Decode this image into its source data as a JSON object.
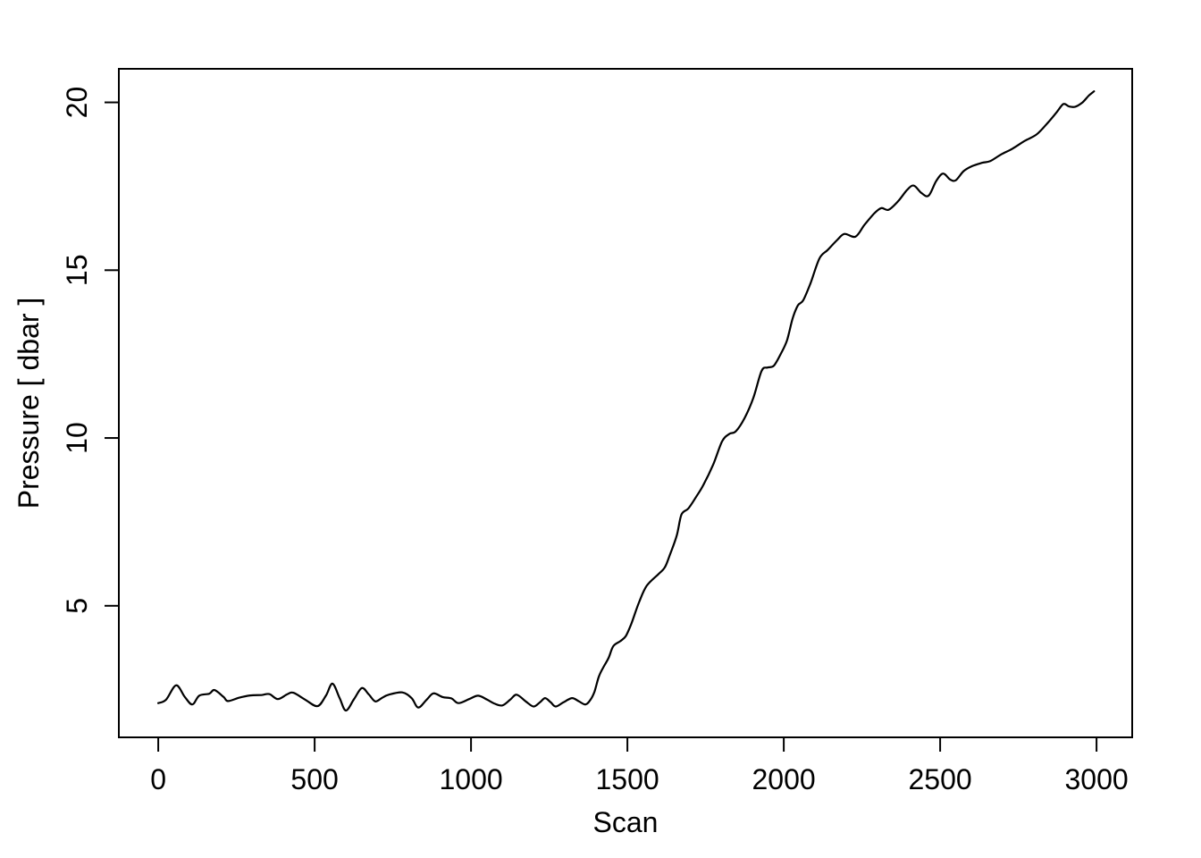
{
  "figure": {
    "background": "#ffffff",
    "axis_color": "#000000"
  },
  "chart_data": {
    "type": "line",
    "title": "",
    "xlabel": "Scan",
    "ylabel": "Pressure [ dbar ]",
    "x_ticks": [
      0,
      500,
      1000,
      1500,
      2000,
      2500,
      3000
    ],
    "y_ticks": [
      5,
      10,
      15,
      20
    ],
    "xlim": [
      -126,
      3114
    ],
    "ylim": [
      1.08,
      21.0
    ],
    "grid": false,
    "legend": "none",
    "line_color": "#000000",
    "series": [
      {
        "name": "Pressure",
        "points": [
          [
            0,
            2.1
          ],
          [
            25,
            2.2
          ],
          [
            57,
            2.63
          ],
          [
            85,
            2.28
          ],
          [
            109,
            2.06
          ],
          [
            131,
            2.32
          ],
          [
            163,
            2.38
          ],
          [
            180,
            2.49
          ],
          [
            209,
            2.28
          ],
          [
            223,
            2.16
          ],
          [
            258,
            2.26
          ],
          [
            294,
            2.33
          ],
          [
            330,
            2.34
          ],
          [
            355,
            2.37
          ],
          [
            382,
            2.22
          ],
          [
            412,
            2.36
          ],
          [
            432,
            2.41
          ],
          [
            470,
            2.2
          ],
          [
            509,
            2.01
          ],
          [
            536,
            2.32
          ],
          [
            557,
            2.68
          ],
          [
            580,
            2.25
          ],
          [
            600,
            1.88
          ],
          [
            626,
            2.22
          ],
          [
            651,
            2.55
          ],
          [
            673,
            2.36
          ],
          [
            694,
            2.15
          ],
          [
            716,
            2.26
          ],
          [
            737,
            2.35
          ],
          [
            780,
            2.42
          ],
          [
            810,
            2.25
          ],
          [
            831,
            1.97
          ],
          [
            858,
            2.2
          ],
          [
            880,
            2.39
          ],
          [
            909,
            2.28
          ],
          [
            937,
            2.24
          ],
          [
            960,
            2.1
          ],
          [
            994,
            2.22
          ],
          [
            1023,
            2.32
          ],
          [
            1052,
            2.2
          ],
          [
            1074,
            2.09
          ],
          [
            1100,
            2.03
          ],
          [
            1125,
            2.2
          ],
          [
            1146,
            2.35
          ],
          [
            1175,
            2.15
          ],
          [
            1200,
            2.0
          ],
          [
            1220,
            2.12
          ],
          [
            1237,
            2.25
          ],
          [
            1255,
            2.12
          ],
          [
            1271,
            2.0
          ],
          [
            1295,
            2.12
          ],
          [
            1323,
            2.25
          ],
          [
            1345,
            2.15
          ],
          [
            1366,
            2.06
          ],
          [
            1382,
            2.2
          ],
          [
            1395,
            2.45
          ],
          [
            1409,
            2.9
          ],
          [
            1425,
            3.2
          ],
          [
            1440,
            3.45
          ],
          [
            1455,
            3.8
          ],
          [
            1478,
            3.95
          ],
          [
            1495,
            4.1
          ],
          [
            1512,
            4.45
          ],
          [
            1537,
            5.1
          ],
          [
            1562,
            5.6
          ],
          [
            1600,
            5.95
          ],
          [
            1620,
            6.15
          ],
          [
            1637,
            6.55
          ],
          [
            1658,
            7.1
          ],
          [
            1673,
            7.72
          ],
          [
            1695,
            7.9
          ],
          [
            1720,
            8.25
          ],
          [
            1743,
            8.6
          ],
          [
            1774,
            9.2
          ],
          [
            1803,
            9.9
          ],
          [
            1826,
            10.12
          ],
          [
            1847,
            10.2
          ],
          [
            1875,
            10.6
          ],
          [
            1903,
            11.2
          ],
          [
            1929,
            12.0
          ],
          [
            1948,
            12.1
          ],
          [
            1968,
            12.15
          ],
          [
            1990,
            12.5
          ],
          [
            2010,
            12.9
          ],
          [
            2028,
            13.55
          ],
          [
            2045,
            13.95
          ],
          [
            2062,
            14.1
          ],
          [
            2085,
            14.6
          ],
          [
            2114,
            15.35
          ],
          [
            2140,
            15.6
          ],
          [
            2171,
            15.9
          ],
          [
            2194,
            16.08
          ],
          [
            2229,
            16.0
          ],
          [
            2258,
            16.35
          ],
          [
            2290,
            16.7
          ],
          [
            2312,
            16.85
          ],
          [
            2335,
            16.8
          ],
          [
            2365,
            17.05
          ],
          [
            2395,
            17.4
          ],
          [
            2416,
            17.52
          ],
          [
            2440,
            17.3
          ],
          [
            2463,
            17.22
          ],
          [
            2487,
            17.65
          ],
          [
            2509,
            17.88
          ],
          [
            2532,
            17.7
          ],
          [
            2550,
            17.68
          ],
          [
            2575,
            17.95
          ],
          [
            2602,
            18.1
          ],
          [
            2635,
            18.2
          ],
          [
            2660,
            18.25
          ],
          [
            2695,
            18.45
          ],
          [
            2731,
            18.62
          ],
          [
            2770,
            18.85
          ],
          [
            2809,
            19.05
          ],
          [
            2845,
            19.4
          ],
          [
            2872,
            19.7
          ],
          [
            2894,
            19.95
          ],
          [
            2912,
            19.88
          ],
          [
            2932,
            19.87
          ],
          [
            2955,
            20.0
          ],
          [
            2975,
            20.2
          ],
          [
            2992,
            20.33
          ]
        ]
      }
    ]
  }
}
